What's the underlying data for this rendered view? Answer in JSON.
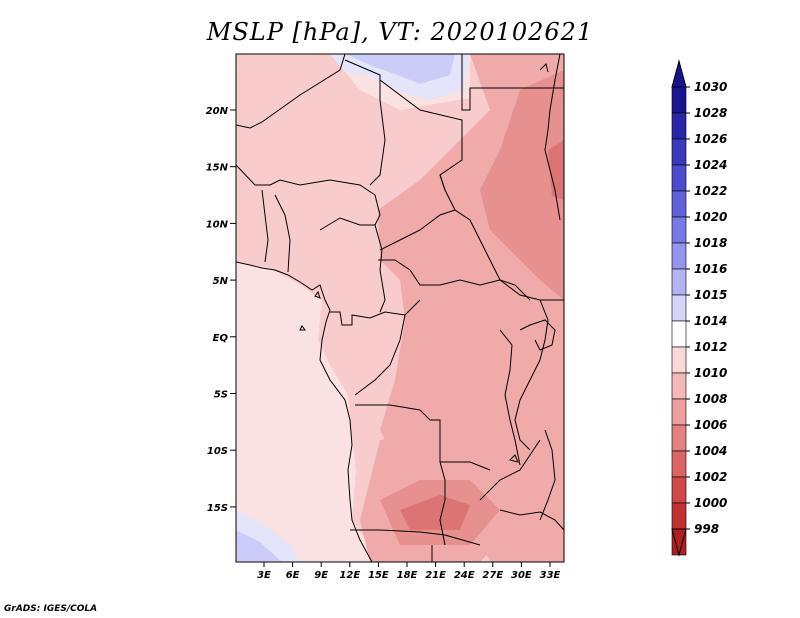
{
  "title": "MSLP [hPa], VT: 2020102621",
  "credit": "GrADS: IGES/COLA",
  "lat_labels": [
    "20N",
    "15N",
    "10N",
    "5N",
    "EQ",
    "5S",
    "10S",
    "15S"
  ],
  "lon_labels": [
    "3E",
    "6E",
    "9E",
    "12E",
    "15E",
    "18E",
    "21E",
    "24E",
    "27E",
    "30E",
    "33E"
  ],
  "colorbar": {
    "labels": [
      "1030",
      "1028",
      "1026",
      "1024",
      "1022",
      "1020",
      "1018",
      "1016",
      "1015",
      "1014",
      "1012",
      "1010",
      "1008",
      "1006",
      "1004",
      "1002",
      "1000",
      "998"
    ],
    "colors": [
      "#1a1490",
      "#2a26a8",
      "#3a38bc",
      "#4c4ccc",
      "#6060dc",
      "#7878e6",
      "#9494ee",
      "#b4b4f4",
      "#d4d4f8",
      "#ffffff",
      "#fad8d8",
      "#f4b8b8",
      "#ee9e9e",
      "#e48080",
      "#dc6464",
      "#d24848",
      "#c23030",
      "#ae2020"
    ],
    "top_color": "#1a1490",
    "bottom_color": "#ae2020"
  },
  "colors": {
    "ocean": "#fbe2e2",
    "land_light": "#f8cccc",
    "land_mid": "#f0aaaa",
    "land_low": "#e69090",
    "land_lowest": "#dc7474",
    "high": "#ccccf8",
    "high_light": "#e4e4fa"
  }
}
